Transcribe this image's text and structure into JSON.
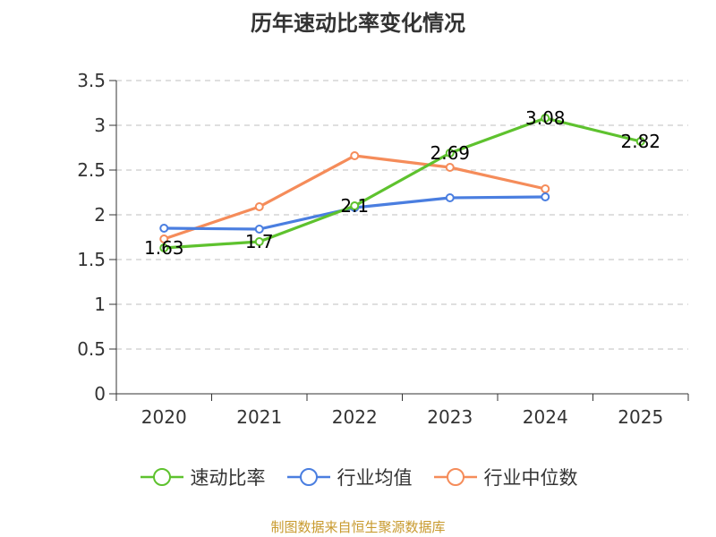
{
  "title": "历年速动比率变化情况",
  "source": "制图数据来自恒生聚源数据库",
  "chart_data": {
    "type": "line",
    "title": "历年速动比率变化情况",
    "categories": [
      "2020",
      "2021",
      "2022",
      "2023",
      "2024",
      "2025"
    ],
    "ylim": [
      0,
      3.5
    ],
    "yticks": [
      "0",
      "0.5",
      "1",
      "1.5",
      "2",
      "2.5",
      "3",
      "3.5"
    ],
    "grid": true,
    "legend_position": "bottom",
    "series": [
      {
        "name": "速动比率",
        "color": "#5ec22e",
        "values": [
          1.63,
          1.7,
          2.1,
          2.69,
          3.08,
          2.82
        ],
        "labels": [
          "1.63",
          "1.7",
          "2.1",
          "2.69",
          "3.08",
          "2.82"
        ]
      },
      {
        "name": "行业均值",
        "color": "#4a7ee0",
        "values": [
          1.85,
          1.84,
          2.08,
          2.19,
          2.2,
          null
        ]
      },
      {
        "name": "行业中位数",
        "color": "#f58c5a",
        "values": [
          1.73,
          2.09,
          2.66,
          2.53,
          2.29,
          null
        ]
      }
    ]
  }
}
